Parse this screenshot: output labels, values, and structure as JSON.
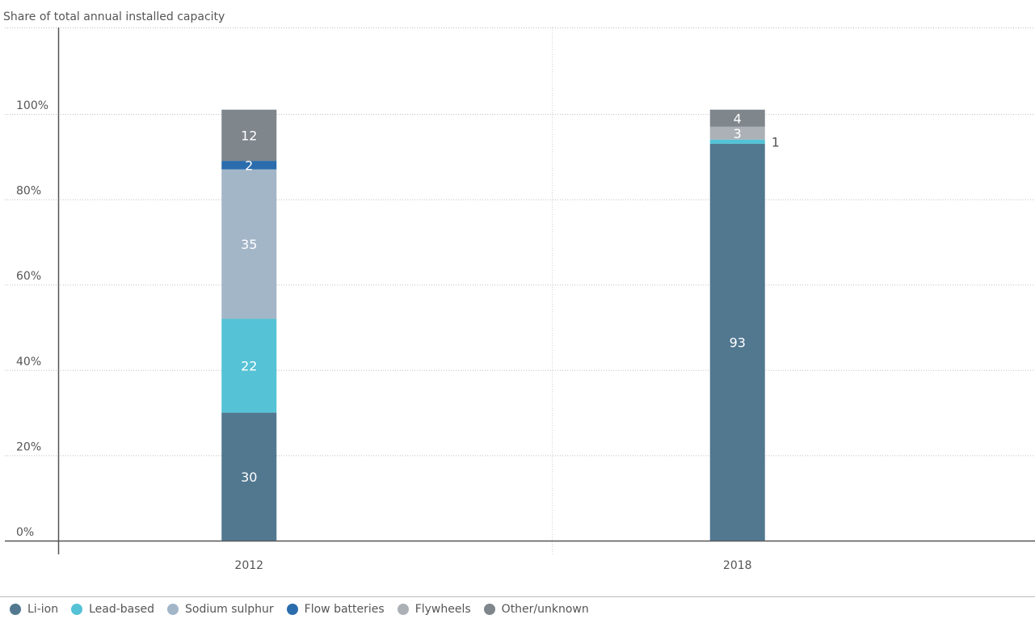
{
  "chart_data": {
    "type": "bar",
    "stacked": true,
    "ylabel": "Share of total annual installed capacity",
    "yticks": [
      "0%",
      "20%",
      "40%",
      "60%",
      "80%",
      "100%"
    ],
    "ylim": [
      0,
      100
    ],
    "categories": [
      "2012",
      "2018"
    ],
    "grid": true,
    "legend_position": "bottom-left",
    "series": [
      {
        "name": "Li-ion",
        "color": "#527890",
        "values": [
          30,
          93
        ],
        "labels": [
          "30",
          "93"
        ]
      },
      {
        "name": "Lead-based",
        "color": "#55c2d6",
        "values": [
          22,
          1
        ],
        "labels": [
          "22",
          "1"
        ]
      },
      {
        "name": "Sodium sulphur",
        "color": "#a3b6c8",
        "values": [
          35,
          0
        ],
        "labels": [
          "35",
          ""
        ]
      },
      {
        "name": "Flow batteries",
        "color": "#2b6cad",
        "values": [
          2,
          0
        ],
        "labels": [
          "2",
          ""
        ]
      },
      {
        "name": "Flywheels",
        "color": "#abb1b6",
        "values": [
          0,
          3
        ],
        "labels": [
          "",
          "3"
        ]
      },
      {
        "name": "Other/unknown",
        "color": "#7f868c",
        "values": [
          12,
          4
        ],
        "labels": [
          "12",
          "4"
        ]
      }
    ]
  }
}
